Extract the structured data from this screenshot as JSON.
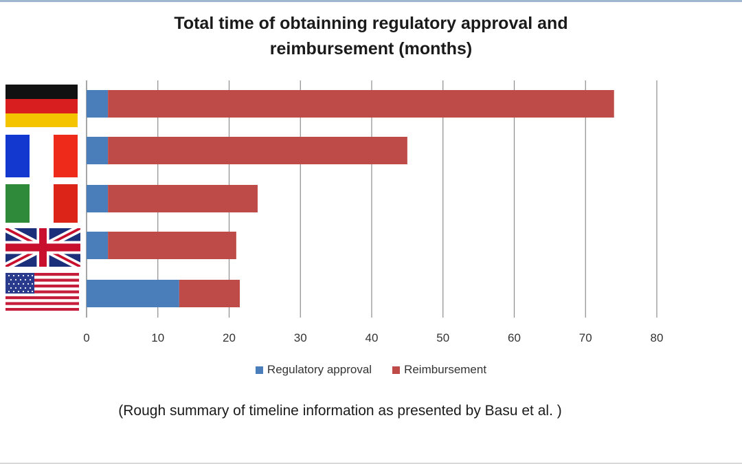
{
  "chart_data": {
    "type": "bar",
    "orientation": "horizontal",
    "stacked": true,
    "title_lines": [
      "Total time of obtainning regulatory approval and",
      "reimbursement (months)"
    ],
    "categories": [
      "Germany",
      "France",
      "Italy",
      "United Kingdom",
      "United States"
    ],
    "series": [
      {
        "name": "Regulatory approval",
        "color": "#4a7ebb",
        "values": [
          3,
          3,
          3,
          3,
          13
        ]
      },
      {
        "name": "Reimbursement",
        "color": "#be4b48",
        "values": [
          71,
          42,
          21,
          18,
          8.5
        ]
      }
    ],
    "xlim": [
      0,
      80
    ],
    "xticks": [
      0,
      10,
      20,
      30,
      40,
      50,
      60,
      70,
      80
    ],
    "grid": "vertical",
    "legend_position": "bottom",
    "category_markers": [
      "germany-flag-icon",
      "france-flag-icon",
      "italy-flag-icon",
      "uk-flag-icon",
      "usa-flag-icon"
    ]
  },
  "caption": "(Rough summary of timeline information as presented by Basu et al. )"
}
